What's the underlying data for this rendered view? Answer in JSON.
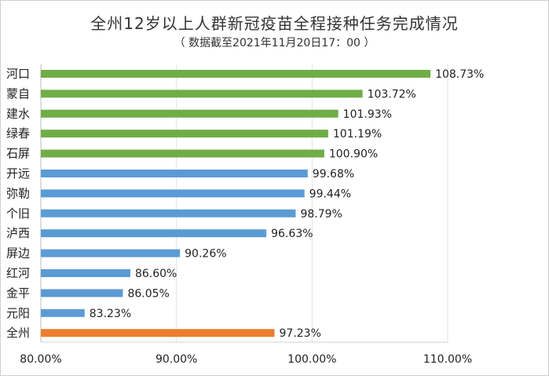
{
  "chart_data": {
    "type": "bar",
    "orientation": "horizontal",
    "title": "全州12岁以上人群新冠疫苗全程接种任务完成情况",
    "subtitle": "（ 数据截至2021年11月20日17：00 ）",
    "categories": [
      "河口",
      "蒙自",
      "建水",
      "绿春",
      "石屏",
      "开远",
      "弥勒",
      "个旧",
      "泸西",
      "屏边",
      "红河",
      "金平",
      "元阳",
      "全州"
    ],
    "values": [
      108.73,
      103.72,
      101.93,
      101.19,
      100.9,
      99.68,
      99.44,
      98.79,
      96.63,
      90.26,
      86.6,
      86.05,
      83.23,
      97.23
    ],
    "value_labels": [
      "108.73%",
      "103.72%",
      "101.93%",
      "101.19%",
      "100.90%",
      "99.68%",
      "99.44%",
      "98.79%",
      "96.63%",
      "90.26%",
      "86.60%",
      "86.05%",
      "83.23%",
      "97.23%"
    ],
    "bar_colors": [
      "#70ad47",
      "#70ad47",
      "#70ad47",
      "#70ad47",
      "#70ad47",
      "#5b9bd5",
      "#5b9bd5",
      "#5b9bd5",
      "#5b9bd5",
      "#5b9bd5",
      "#5b9bd5",
      "#5b9bd5",
      "#5b9bd5",
      "#ed7d31"
    ],
    "xlim": [
      80,
      110
    ],
    "xticks": [
      80,
      90,
      100,
      110
    ],
    "xtick_labels": [
      "80.00%",
      "90.00%",
      "100.00%",
      "110.00%"
    ],
    "grid": true
  }
}
